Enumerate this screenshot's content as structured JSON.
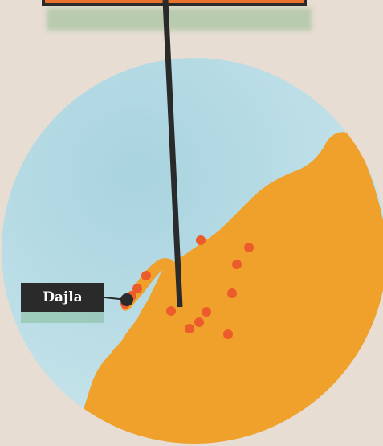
{
  "place_label": "Dajla",
  "colors": {
    "background": "#e7ddd2",
    "sea": "#bfe0e8",
    "land": "#f0a12c",
    "points": "#ec5b2c",
    "marker": "#2a2a2a",
    "banner": "#e8722b"
  },
  "icons": {
    "location_pin": "location-pin-icon"
  }
}
